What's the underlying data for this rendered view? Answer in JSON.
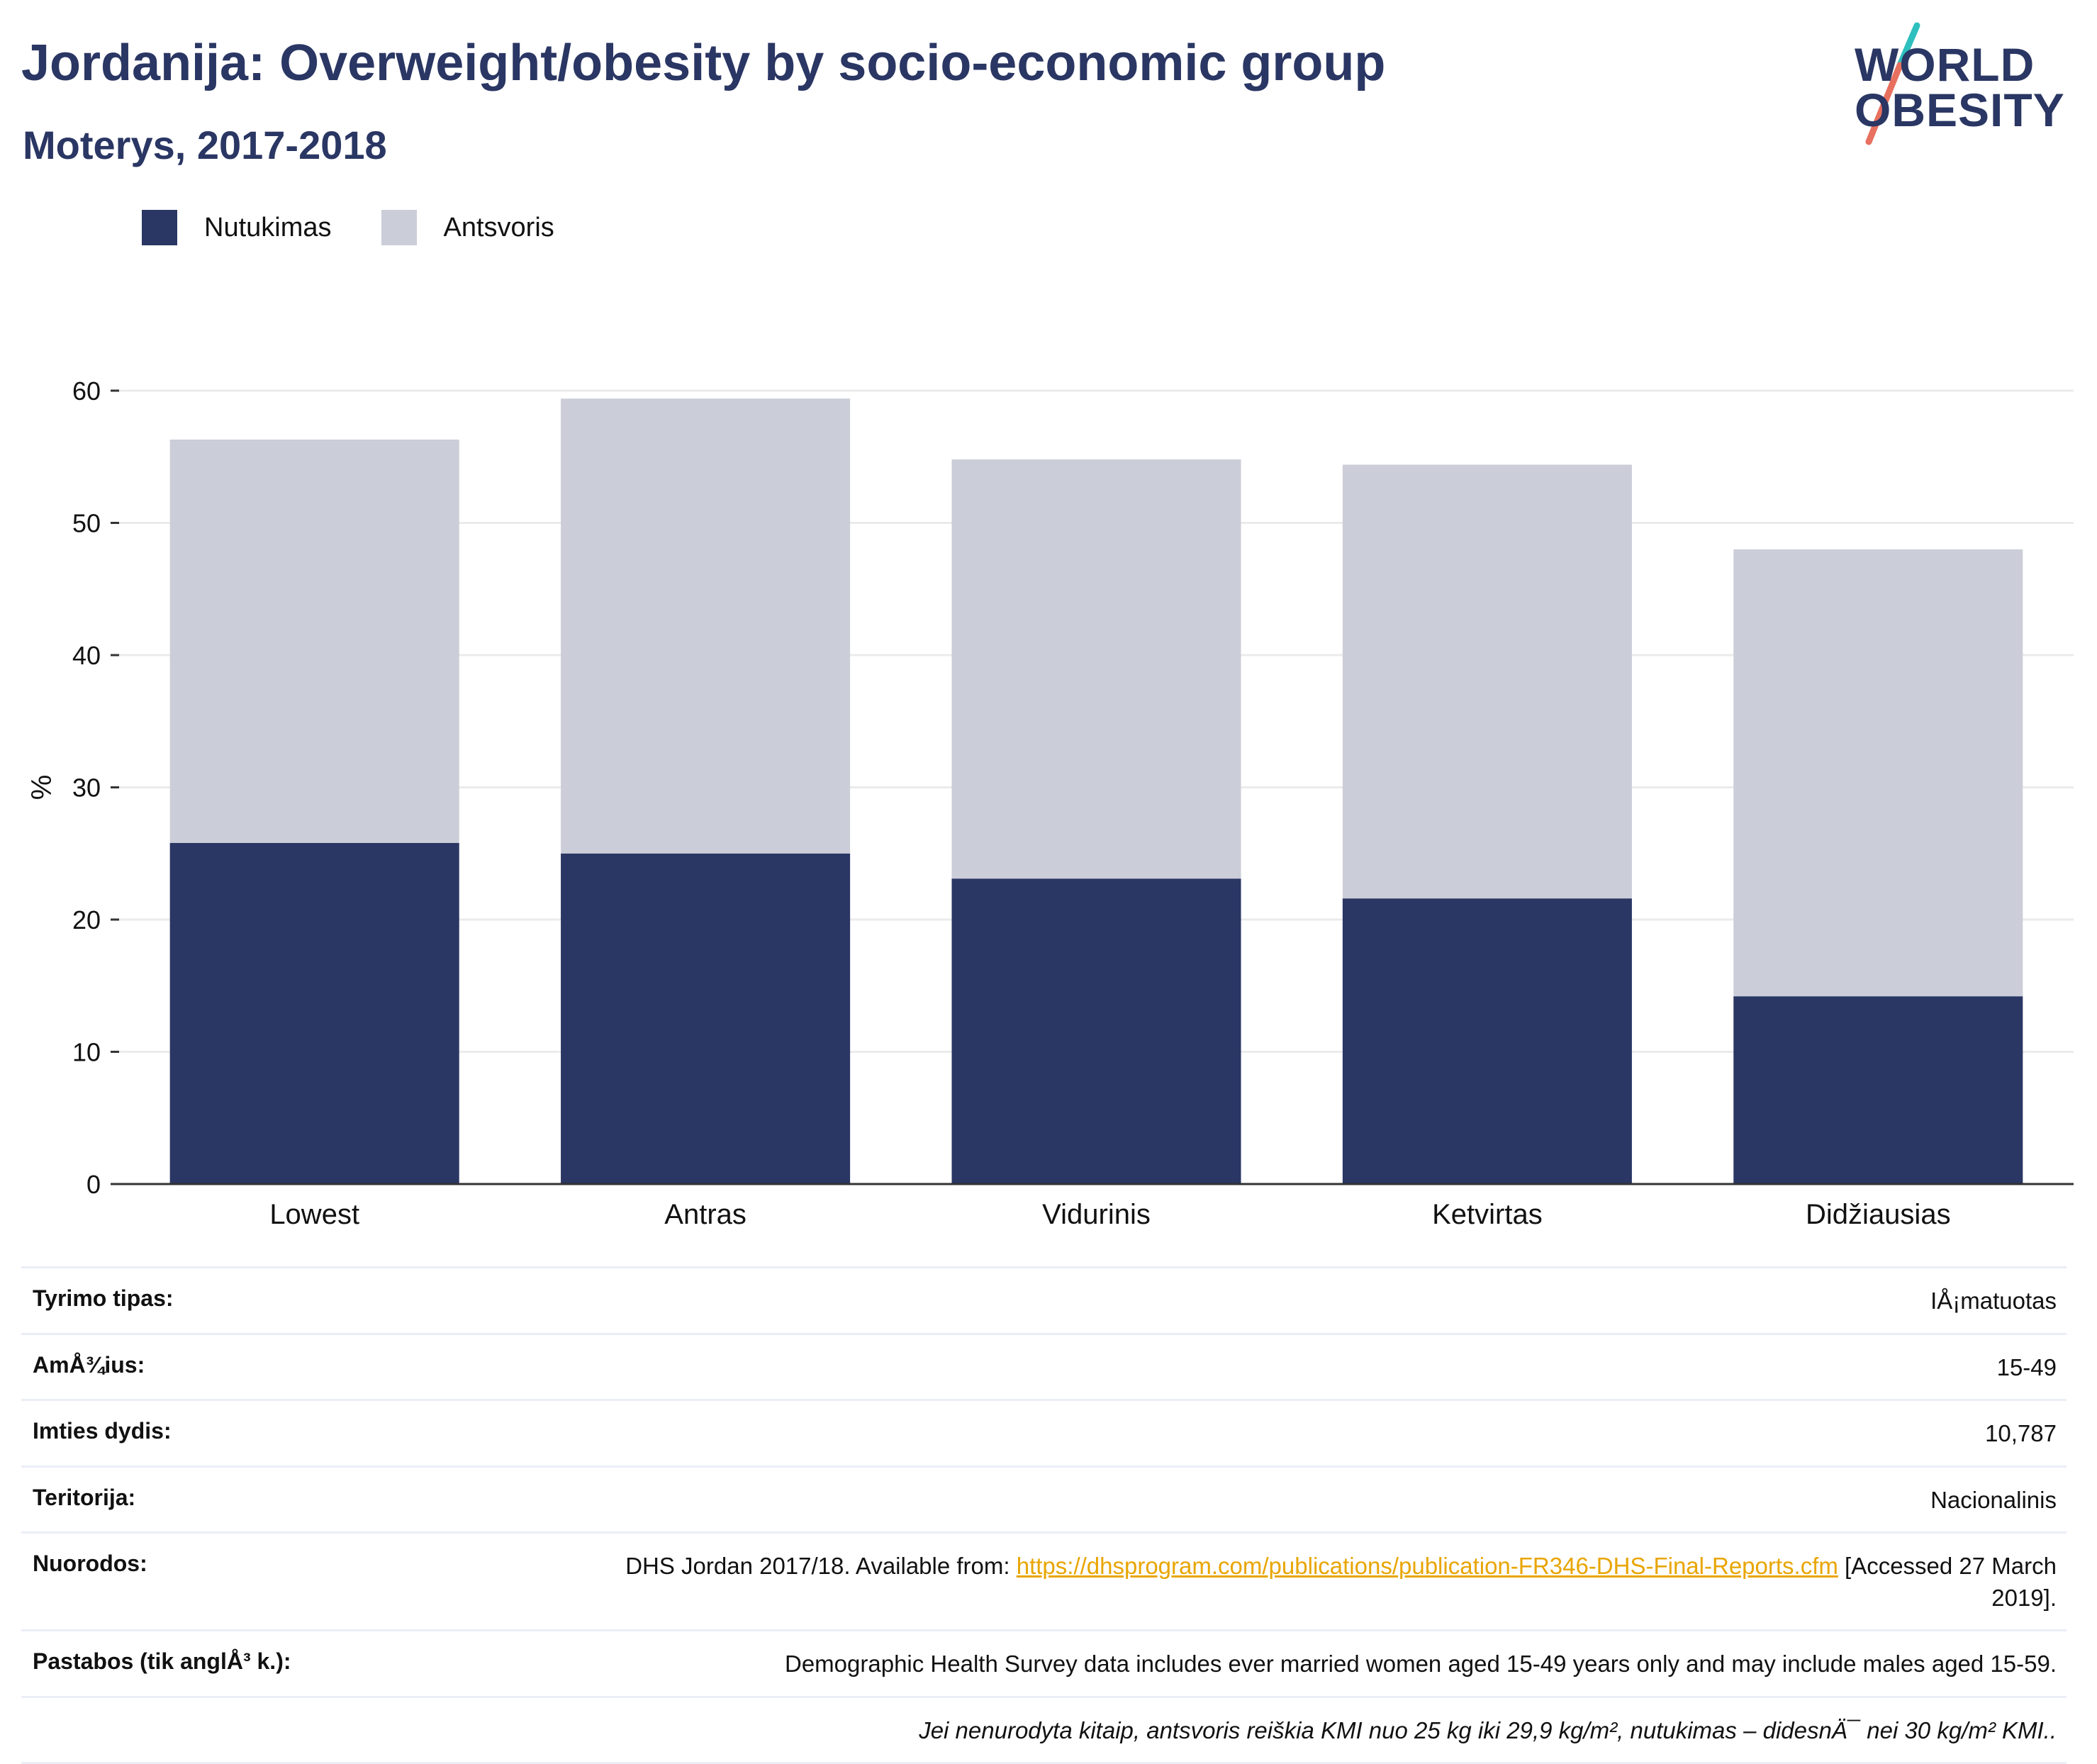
{
  "header": {
    "title": "Jordanija: Overweight/obesity by socio-economic group",
    "subtitle": "Moterys, 2017-2018"
  },
  "logo": {
    "line1": "WORLD",
    "line2": "OBESITY",
    "colors": {
      "text": "#2a3663",
      "slash_top": "#2ebfbf",
      "slash_bottom": "#e8705f"
    }
  },
  "colors": {
    "obesity": "#2a3663",
    "overweight": "#cbcdd8",
    "gridline": "#ebebeb",
    "axis": "#333333",
    "link": "#e8a500"
  },
  "legend": {
    "items": [
      {
        "label": "Nutukimas",
        "color": "#2a3663"
      },
      {
        "label": "Antsvoris",
        "color": "#cbcdd8"
      }
    ]
  },
  "chart_data": {
    "type": "bar",
    "stacked": true,
    "title": "Jordanija: Overweight/obesity by socio-economic group",
    "subtitle": "Moterys, 2017-2018",
    "xlabel": "",
    "ylabel": "%",
    "ylim": [
      0,
      60
    ],
    "yticks": [
      0,
      10,
      20,
      30,
      40,
      50,
      60
    ],
    "grid": true,
    "legend_position": "top-left",
    "categories": [
      "Lowest",
      "Antras",
      "Vidurinis",
      "Ketvirtas",
      "Didžiausias"
    ],
    "series": [
      {
        "name": "Nutukimas",
        "color": "#2a3663",
        "values": [
          25.8,
          25.0,
          23.1,
          21.6,
          14.2
        ]
      },
      {
        "name": "Antsvoris",
        "color": "#cbcdd8",
        "values": [
          30.5,
          34.4,
          31.7,
          32.8,
          33.8
        ]
      }
    ]
  },
  "info": {
    "survey_type": {
      "label": "Tyrimo tipas:",
      "value": "IÅ¡matuotas"
    },
    "age": {
      "label": "AmÅ¾ius:",
      "value": "15-49"
    },
    "sample_size": {
      "label": "Imties dydis:",
      "value": "10,787"
    },
    "territory": {
      "label": "Teritorija:",
      "value": "Nacionalinis"
    },
    "references": {
      "label": "Nuorodos:",
      "prefix": "DHS Jordan 2017/18. Available from: ",
      "link": "https://dhsprogram.com/publications/publication-FR346-DHS-Final-Reports.cfm",
      "suffix": " [Accessed 27 March 2019]."
    },
    "notes": {
      "label": "Pastabos (tik anglÅ³ k.):",
      "value": "Demographic Health Survey data includes ever married women aged 15-49 years only and may include males aged 15-59."
    },
    "definition": "Jei nenurodyta kitaip, antsvoris reiškia KMI nuo 25 kg iki 29,9 kg/m², nutukimas – didesnÄ¯ nei 30 kg/m² KMI.."
  }
}
